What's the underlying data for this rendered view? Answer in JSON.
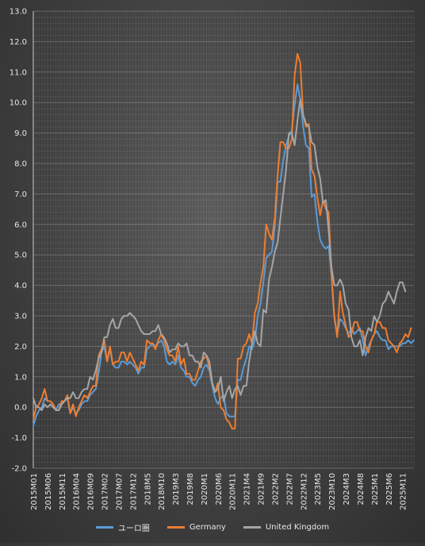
{
  "colors": {
    "ユーロ圏": "#5b9bd5",
    "Germany": "#ed7d31",
    "United Kingdom": "#a5a5a5"
  },
  "chart_data": {
    "type": "line",
    "title": "",
    "xlabel": "",
    "ylabel": "",
    "ylim": [
      -2.0,
      13.0
    ],
    "ytick_step": 1.0,
    "grid": true,
    "legend_position": "bottom",
    "x_tick_labels": [
      "2015M01",
      "2015M06",
      "2015M11",
      "2016M04",
      "2016M09",
      "2017M02",
      "2017M07",
      "2017M12",
      "2018M5",
      "2018M10",
      "2019M3",
      "2019M8",
      "2020M1",
      "2020M6",
      "2020M11",
      "2021M4",
      "2021M9",
      "2022M2",
      "2022M7",
      "2022M12",
      "2023M5",
      "2023M10",
      "2024M3",
      "2024M8",
      "2025M1",
      "2025M6",
      "2025M11"
    ],
    "series": [
      {
        "name": "ユーロ圏",
        "values": [
          -0.6,
          -0.3,
          -0.1,
          0.0,
          0.3,
          0.2,
          0.2,
          0.1,
          -0.1,
          0.1,
          0.1,
          0.2,
          0.3,
          -0.2,
          0.0,
          -0.2,
          -0.1,
          0.1,
          0.2,
          0.2,
          0.4,
          0.5,
          0.6,
          1.1,
          1.8,
          2.0,
          1.5,
          1.9,
          1.4,
          1.3,
          1.3,
          1.5,
          1.5,
          1.4,
          1.5,
          1.4,
          1.3,
          1.1,
          1.3,
          1.3,
          1.9,
          2.0,
          2.1,
          2.0,
          2.1,
          2.2,
          2.0,
          1.5,
          1.4,
          1.5,
          1.4,
          1.7,
          1.3,
          1.2,
          1.0,
          1.0,
          0.8,
          0.7,
          0.9,
          1.0,
          1.3,
          1.4,
          1.2,
          0.7,
          0.3,
          0.1,
          0.3,
          0.4,
          -0.2,
          -0.3,
          -0.3,
          -0.3,
          0.9,
          0.9,
          1.3,
          1.6,
          2.0,
          1.9,
          2.2,
          3.0,
          3.4,
          4.1,
          4.9,
          5.0,
          5.1,
          5.9,
          7.4,
          7.4,
          8.1,
          8.6,
          8.9,
          9.1,
          9.9,
          10.6,
          10.1,
          9.2,
          8.6,
          8.5,
          6.9,
          7.0,
          6.1,
          5.5,
          5.3,
          5.2,
          5.3,
          4.3,
          2.9,
          2.4,
          2.9,
          2.8,
          2.6,
          2.4,
          2.6,
          2.4,
          2.5,
          2.6,
          2.2,
          1.7,
          2.0,
          2.2,
          2.4,
          2.5,
          2.3,
          2.2,
          2.2,
          1.9,
          2.0,
          2.0,
          2.0,
          2.0,
          2.1,
          2.1,
          2.2,
          2.1,
          2.2
        ],
        "color": "#5b9bd5"
      },
      {
        "name": "Germany",
        "values": [
          -0.4,
          0.0,
          0.1,
          0.3,
          0.6,
          0.2,
          0.2,
          0.1,
          -0.1,
          -0.1,
          0.2,
          0.2,
          0.4,
          -0.2,
          0.1,
          -0.3,
          0.0,
          0.2,
          0.4,
          0.3,
          0.5,
          0.7,
          0.7,
          1.7,
          1.9,
          2.2,
          1.5,
          2.0,
          1.4,
          1.5,
          1.5,
          1.8,
          1.8,
          1.5,
          1.8,
          1.6,
          1.4,
          1.2,
          1.5,
          1.4,
          2.2,
          2.1,
          2.1,
          1.9,
          2.2,
          2.4,
          2.2,
          1.9,
          1.7,
          1.7,
          1.5,
          2.0,
          1.4,
          1.6,
          1.1,
          1.1,
          0.9,
          0.9,
          1.2,
          1.5,
          1.6,
          1.7,
          1.3,
          0.8,
          0.5,
          0.8,
          0.0,
          -0.1,
          -0.4,
          -0.5,
          -0.7,
          -0.7,
          1.6,
          1.6,
          2.0,
          2.1,
          2.4,
          2.1,
          3.1,
          3.4,
          4.1,
          4.6,
          6.0,
          5.7,
          5.5,
          6.2,
          7.6,
          8.7,
          8.7,
          8.5,
          8.5,
          8.8,
          10.9,
          11.6,
          11.3,
          9.6,
          9.2,
          9.3,
          7.8,
          7.6,
          6.9,
          6.3,
          6.8,
          6.5,
          6.4,
          4.3,
          3.0,
          2.3,
          3.8,
          3.1,
          2.7,
          2.3,
          2.4,
          2.8,
          2.8,
          2.5,
          2.5,
          2.0,
          1.8,
          2.2,
          2.4,
          2.8,
          2.8,
          2.6,
          2.6,
          2.2,
          2.1,
          2.0,
          1.8,
          2.1,
          2.2,
          2.4,
          2.3,
          2.6
        ],
        "color": "#ed7d31"
      },
      {
        "name": "United Kingdom",
        "values": [
          0.3,
          0.0,
          0.0,
          -0.1,
          0.1,
          0.0,
          0.1,
          0.0,
          -0.1,
          -0.1,
          0.1,
          0.2,
          0.3,
          0.3,
          0.5,
          0.3,
          0.3,
          0.5,
          0.6,
          0.6,
          1.0,
          0.9,
          1.2,
          1.6,
          1.8,
          2.3,
          2.3,
          2.7,
          2.9,
          2.6,
          2.6,
          2.9,
          3.0,
          3.0,
          3.1,
          3.0,
          2.9,
          2.7,
          2.5,
          2.4,
          2.4,
          2.4,
          2.5,
          2.5,
          2.7,
          2.4,
          2.3,
          2.1,
          1.8,
          1.9,
          1.9,
          2.1,
          2.0,
          2.0,
          2.1,
          1.7,
          1.7,
          1.5,
          1.5,
          1.3,
          1.8,
          1.7,
          1.5,
          0.8,
          0.5,
          0.6,
          1.0,
          0.2,
          0.5,
          0.7,
          0.3,
          0.6,
          0.7,
          0.4,
          0.7,
          0.7,
          1.5,
          2.1,
          2.5,
          2.1,
          2.0,
          3.2,
          3.1,
          4.2,
          4.6,
          5.1,
          5.4,
          6.2,
          7.0,
          7.8,
          9.0,
          9.0,
          8.6,
          9.4,
          10.1,
          9.6,
          9.3,
          9.2,
          8.7,
          8.6,
          7.9,
          7.5,
          6.7,
          6.8,
          5.8,
          4.6,
          4.0,
          4.0,
          4.2,
          4.0,
          3.4,
          3.2,
          2.3,
          2.0,
          2.0,
          2.2,
          1.7,
          2.3,
          2.6,
          2.5,
          3.0,
          2.8,
          3.0,
          3.4,
          3.5,
          3.8,
          3.6,
          3.4,
          3.8,
          4.1,
          4.1,
          3.8
        ],
        "color": "#a5a5a5"
      }
    ]
  }
}
